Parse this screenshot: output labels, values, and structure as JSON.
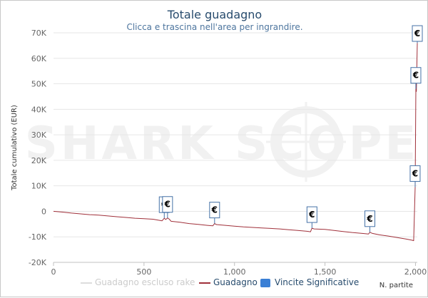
{
  "chart_data": {
    "type": "line",
    "title": "Totale guadagno",
    "subtitle": "Clicca e trascina nell'area per ingrandire.",
    "xlabel": "N. partite",
    "ylabel": "Totale cumulativo (EUR)",
    "xlim": [
      0,
      2010
    ],
    "ylim": [
      -20000,
      70000
    ],
    "x_ticks": [
      0,
      500,
      1000,
      1500,
      2000
    ],
    "x_tick_labels": [
      "0",
      "500",
      "1,000",
      "1,500",
      "2,000"
    ],
    "y_ticks": [
      -20000,
      -10000,
      0,
      10000,
      20000,
      30000,
      40000,
      50000,
      60000,
      70000
    ],
    "y_tick_labels": [
      "-20K",
      "-10K",
      "0",
      "10K",
      "20K",
      "30K",
      "40K",
      "50K",
      "60K",
      "70K"
    ],
    "grid": "horizontal",
    "legend": "bottom",
    "series": [
      {
        "name": "Guadagno",
        "color": "#a0303a",
        "x": [
          0,
          50,
          100,
          150,
          200,
          250,
          300,
          350,
          400,
          450,
          500,
          550,
          600,
          612,
          620,
          630,
          640,
          650,
          700,
          750,
          800,
          850,
          880,
          890,
          900,
          950,
          1000,
          1050,
          1100,
          1150,
          1200,
          1250,
          1300,
          1350,
          1400,
          1420,
          1428,
          1440,
          1500,
          1550,
          1600,
          1650,
          1700,
          1740,
          1748,
          1760,
          1800,
          1850,
          1900,
          1950,
          1980,
          1990,
          1998,
          2002,
          2005,
          2010
        ],
        "y": [
          0,
          -300,
          -700,
          -1000,
          -1300,
          -1500,
          -1800,
          -2100,
          -2400,
          -2700,
          -2900,
          -3100,
          -3700,
          -2700,
          -3200,
          -2600,
          -3100,
          -3900,
          -4300,
          -4800,
          -5100,
          -5500,
          -5700,
          -4800,
          -5200,
          -5500,
          -5800,
          -6100,
          -6300,
          -6500,
          -6700,
          -6900,
          -7200,
          -7500,
          -7800,
          -8000,
          -6600,
          -6900,
          -7100,
          -7500,
          -7900,
          -8300,
          -8600,
          -8900,
          -8200,
          -8600,
          -9200,
          -9700,
          -10300,
          -10900,
          -11300,
          -11500,
          9500,
          48000,
          47000,
          66000
        ]
      },
      {
        "name": "Guadagno escluso rake",
        "color": "#dddddd",
        "x": [],
        "y": []
      }
    ],
    "significant_wins": {
      "name": "Vincite Significative",
      "color": "#3a7fd5",
      "marker": "€",
      "x": [
        612,
        630,
        890,
        1428,
        1748,
        1998,
        2002,
        2010
      ]
    }
  },
  "watermark": "SHARK SCOPE"
}
